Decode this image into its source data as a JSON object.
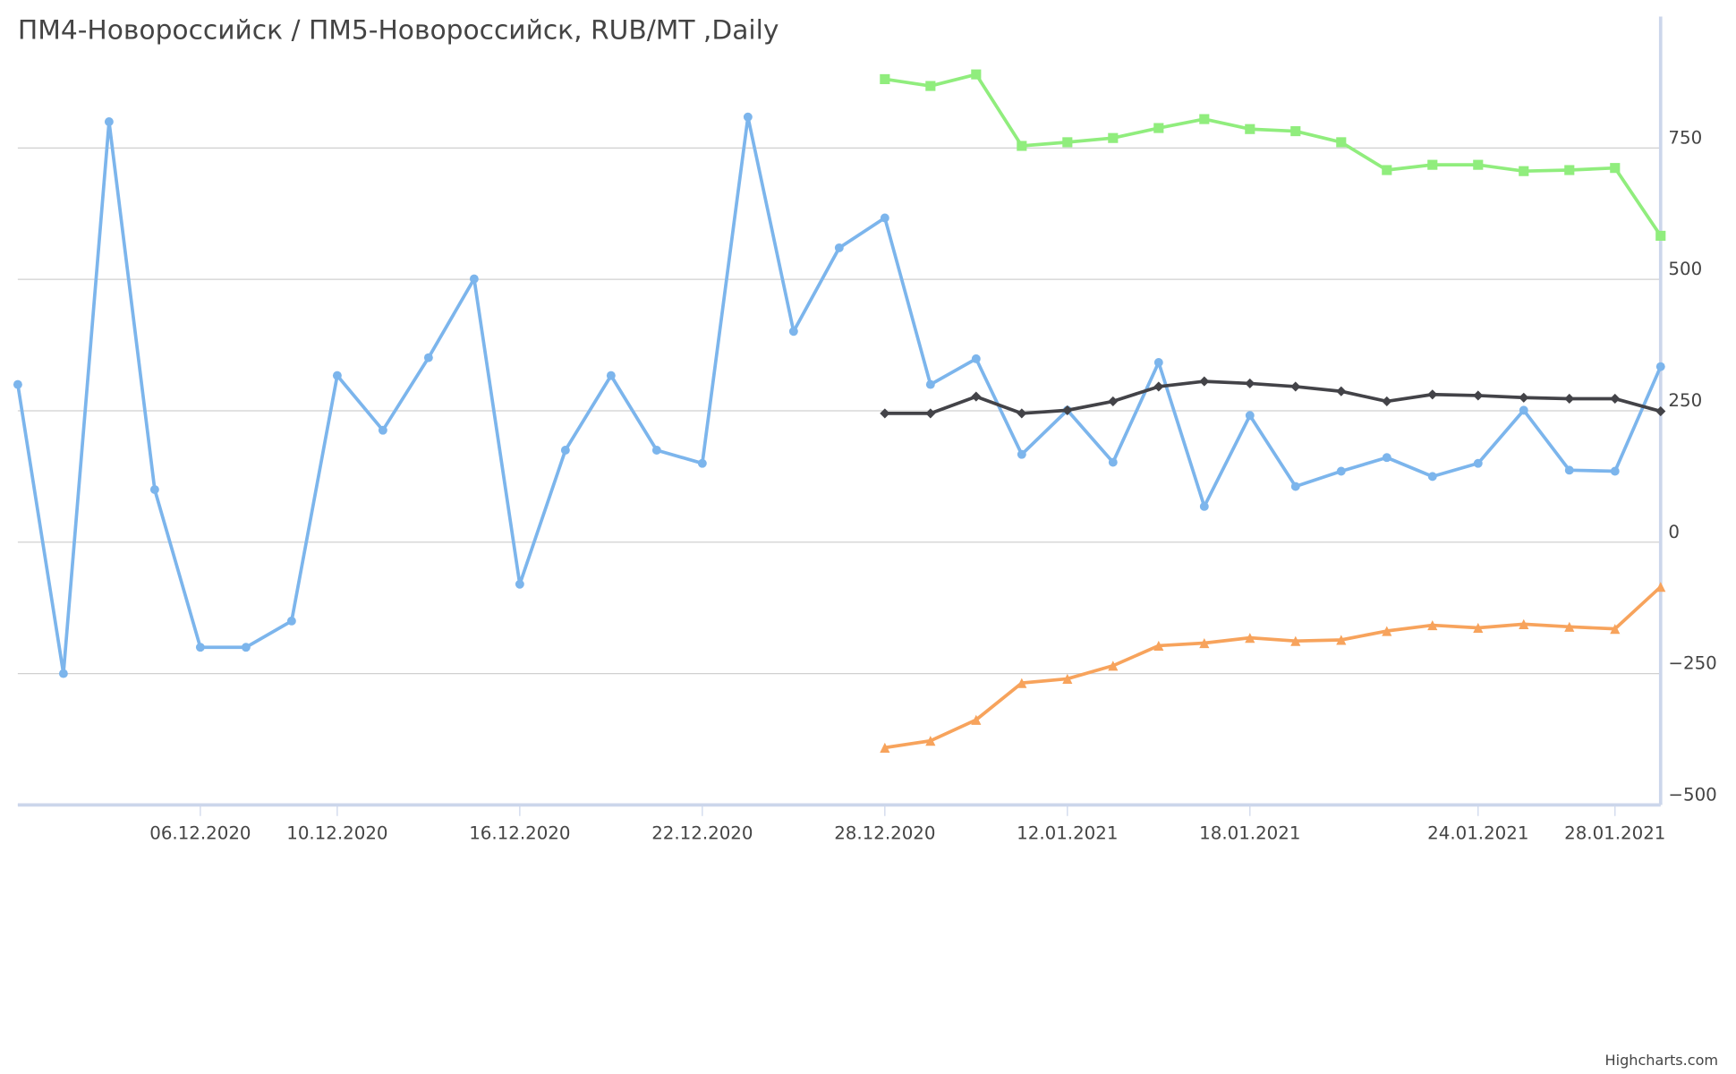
{
  "chart_data": {
    "type": "line",
    "title": "ПМ4-Новороссийск / ПМ5-Новороссийск, RUB/MT ,Daily",
    "credits": "Highcharts.com",
    "categories": [
      null,
      null,
      null,
      null,
      "06.12.2020",
      null,
      null,
      "10.12.2020",
      null,
      null,
      null,
      "16.12.2020",
      null,
      null,
      null,
      "22.12.2020",
      null,
      null,
      null,
      "28.12.2020",
      null,
      null,
      null,
      "12.01.2021",
      null,
      null,
      null,
      "18.01.2021",
      null,
      null,
      null,
      null,
      "24.01.2021",
      null,
      null,
      "28.01.2021",
      null
    ],
    "ylim": [
      -500,
      1000
    ],
    "yticks": [
      {
        "value": -500,
        "label": "−500"
      },
      {
        "value": -250,
        "label": "−250"
      },
      0,
      250,
      500,
      750
    ],
    "grid": true,
    "series": [
      {
        "color": "#7cb5ec",
        "marker": "circle",
        "values": [
          300,
          -250,
          800,
          100,
          -200,
          -200,
          -150,
          317,
          213,
          351,
          501,
          -80,
          175,
          317,
          175,
          150,
          809,
          401,
          560,
          617,
          300,
          349,
          167,
          251,
          152,
          342,
          68,
          241,
          106,
          135,
          161,
          125,
          150,
          251,
          137,
          135,
          334
        ]
      },
      {
        "color": "#434348",
        "marker": "diamond",
        "values": [
          null,
          null,
          null,
          null,
          null,
          null,
          null,
          null,
          null,
          null,
          null,
          null,
          null,
          null,
          null,
          null,
          null,
          null,
          null,
          245,
          245,
          277,
          245,
          251,
          268,
          296,
          306,
          302,
          296,
          287,
          268,
          281,
          279,
          275,
          273,
          273,
          249
        ]
      },
      {
        "color": "#90ed7d",
        "marker": "square",
        "values": [
          null,
          null,
          null,
          null,
          null,
          null,
          null,
          null,
          null,
          null,
          null,
          null,
          null,
          null,
          null,
          null,
          null,
          null,
          null,
          881,
          868,
          890,
          754,
          761,
          769,
          788,
          805,
          786,
          782,
          761,
          708,
          718,
          718,
          706,
          708,
          712,
          583
        ]
      },
      {
        "color": "#f7a35c",
        "marker": "triangle",
        "values": [
          null,
          null,
          null,
          null,
          null,
          null,
          null,
          null,
          null,
          null,
          null,
          null,
          null,
          null,
          null,
          null,
          null,
          null,
          null,
          -391,
          -378,
          -338,
          -268,
          -260,
          -235,
          -197,
          -192,
          -182,
          -188,
          -186,
          -169,
          -158,
          -163,
          -156,
          -161,
          -165,
          -85
        ]
      }
    ]
  }
}
